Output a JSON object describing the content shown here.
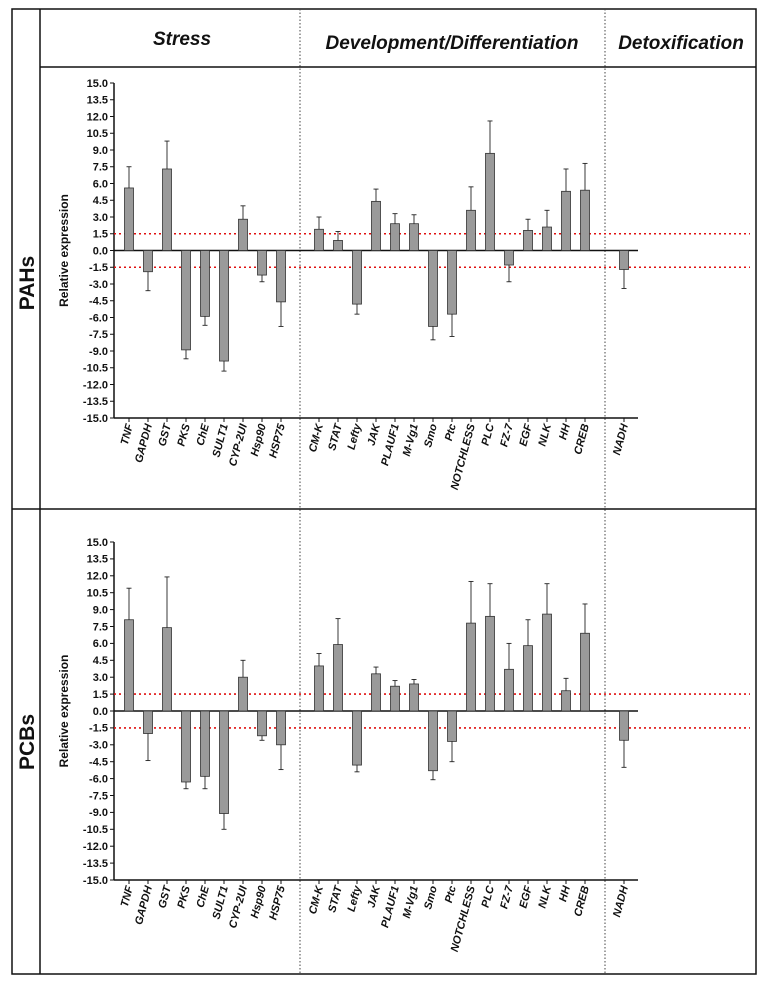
{
  "colors": {
    "bar": "#9a9a9a",
    "bar_stroke": "#333333",
    "threshold": "#e01010",
    "frame": "#111111",
    "divider": "#444444"
  },
  "columns": [
    "Stress",
    "Development/Differentiation",
    "Detoxification"
  ],
  "rows": [
    "PAHs",
    "PCBs"
  ],
  "chart_data": [
    {
      "type": "bar",
      "title": "PAHs",
      "ylabel": "Relative expression",
      "ylim": [
        -15,
        15
      ],
      "yticks": [
        "15.0",
        "13.5",
        "12.0",
        "10.5",
        "9.0",
        "7.5",
        "6.0",
        "4.5",
        "3.0",
        "1.5",
        "0.0",
        "-1.5",
        "-3.0",
        "-4.5",
        "-6.0",
        "-7.5",
        "-9.0",
        "-10.5",
        "-12.0",
        "-13.5",
        "-15.0"
      ],
      "thresholds": [
        1.5,
        -1.5
      ],
      "categories": [
        "TNF",
        "GAPDH",
        "GST",
        "PKS",
        "ChE",
        "SULT1",
        "CYP-2UI",
        "Hsp90",
        "HSP75",
        "CM-K",
        "STAT",
        "Lefty",
        "JAK",
        "PLAUF1",
        "M-Vg1",
        "Smo",
        "Ptc",
        "NOTCHLESS",
        "PLC",
        "FZ-7",
        "EGF",
        "NLK",
        "HH",
        "CREB",
        "NADH"
      ],
      "values": [
        5.6,
        -1.9,
        7.3,
        -8.9,
        -5.9,
        -9.9,
        2.8,
        -2.2,
        -4.6,
        1.9,
        0.9,
        -4.8,
        4.4,
        2.4,
        2.4,
        -6.8,
        -5.7,
        3.6,
        8.7,
        -1.3,
        1.8,
        2.1,
        5.3,
        5.4,
        -1.7
      ],
      "errors": [
        1.9,
        1.7,
        2.5,
        0.8,
        0.8,
        0.9,
        1.2,
        0.6,
        2.2,
        1.1,
        0.8,
        0.9,
        1.1,
        0.9,
        0.8,
        1.2,
        2.0,
        2.1,
        2.9,
        1.5,
        1.0,
        1.5,
        2.0,
        2.4,
        1.7
      ]
    },
    {
      "type": "bar",
      "title": "PCBs",
      "ylabel": "Relative expression",
      "ylim": [
        -15,
        15
      ],
      "yticks": [
        "15.0",
        "13.5",
        "12.0",
        "10.5",
        "9.0",
        "7.5",
        "6.0",
        "4.5",
        "3.0",
        "1.5",
        "0.0",
        "-1.5",
        "-3.0",
        "-4.5",
        "-6.0",
        "-7.5",
        "-9.0",
        "-10.5",
        "-12.0",
        "-13.5",
        "-15.0"
      ],
      "thresholds": [
        1.5,
        -1.5
      ],
      "categories": [
        "TNF",
        "GAPDH",
        "GST",
        "PKS",
        "ChE",
        "SULT1",
        "CYP-2UI",
        "Hsp90",
        "HSP75",
        "CM-K",
        "STAT",
        "Lefty",
        "JAK",
        "PLAUF1",
        "M-Vg1",
        "Smo",
        "Ptc",
        "NOTCHLESS",
        "PLC",
        "FZ-7",
        "EGF",
        "NLK",
        "HH",
        "CREB",
        "NADH"
      ],
      "values": [
        8.1,
        -2.0,
        7.4,
        -6.3,
        -5.8,
        -9.1,
        3.0,
        -2.2,
        -3.0,
        4.0,
        5.9,
        -4.8,
        3.3,
        2.2,
        2.4,
        -5.3,
        -2.7,
        7.8,
        8.4,
        3.7,
        5.8,
        8.6,
        1.8,
        6.9,
        -2.6
      ],
      "errors": [
        2.8,
        2.4,
        4.5,
        0.6,
        1.1,
        1.4,
        1.5,
        0.4,
        2.2,
        1.1,
        2.3,
        0.6,
        0.6,
        0.5,
        0.4,
        0.8,
        1.8,
        3.7,
        2.9,
        2.3,
        2.3,
        2.7,
        1.1,
        2.6,
        2.4
      ]
    }
  ]
}
